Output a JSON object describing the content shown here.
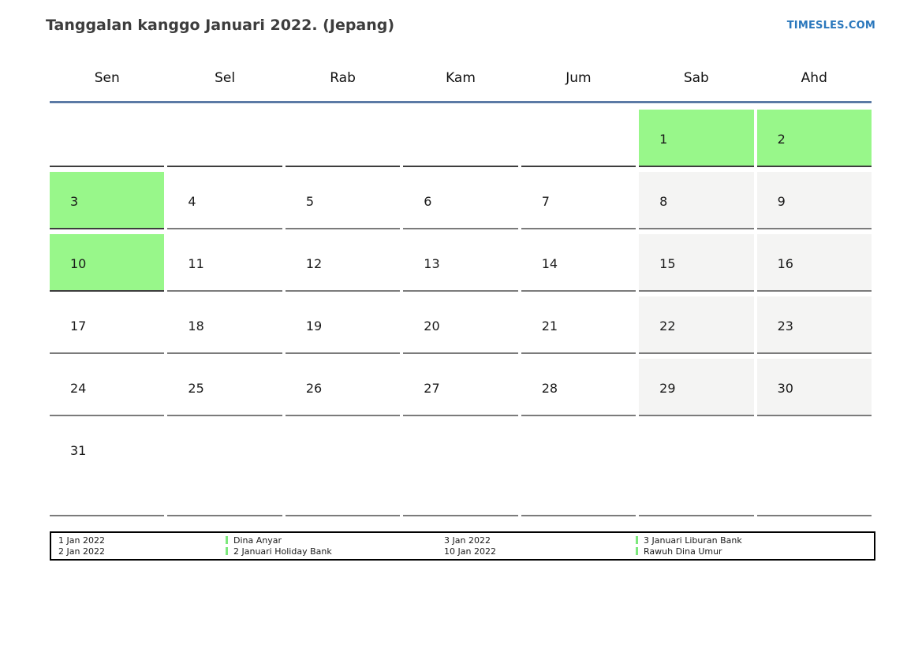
{
  "page": {
    "title": "Tanggalan kanggo Januari 2022. (Jepang)",
    "brand": "TIMESLES.COM"
  },
  "calendar": {
    "month": "Januari 2022",
    "weekdays": [
      "Sen",
      "Sel",
      "Rab",
      "Kam",
      "Jum",
      "Sab",
      "Ahd"
    ],
    "weeks": [
      [
        "",
        "",
        "",
        "",
        "",
        "1",
        "2"
      ],
      [
        "3",
        "4",
        "5",
        "6",
        "7",
        "8",
        "9"
      ],
      [
        "10",
        "11",
        "12",
        "13",
        "14",
        "15",
        "16"
      ],
      [
        "17",
        "18",
        "19",
        "20",
        "21",
        "22",
        "23"
      ],
      [
        "24",
        "25",
        "26",
        "27",
        "28",
        "29",
        "30"
      ],
      [
        "31",
        "",
        "",
        "",
        "",
        "",
        ""
      ]
    ],
    "holiday_days": [
      1,
      2,
      3,
      10
    ],
    "weekend_days": [
      8,
      9,
      15,
      16,
      22,
      23,
      29,
      30
    ],
    "colors": {
      "holiday_bg": "#98f78a",
      "weekend_bg": "#f4f4f3",
      "header_rule": "#5b7aa5",
      "brand": "#2a77bc",
      "legend_marker": "#7ce87c",
      "cell_border": "#7b7b7b",
      "cell_border_dark": "#3d3d3d"
    }
  },
  "legend": {
    "groups": [
      {
        "rows": [
          {
            "date": "1 Jan 2022",
            "label": "Dina Anyar"
          },
          {
            "date": "2 Jan 2022",
            "label": "2 Januari Holiday Bank"
          }
        ]
      },
      {
        "rows": [
          {
            "date": "3 Jan 2022",
            "label": "3 Januari Liburan Bank"
          },
          {
            "date": "10 Jan 2022",
            "label": "Rawuh Dina Umur"
          }
        ]
      }
    ]
  }
}
